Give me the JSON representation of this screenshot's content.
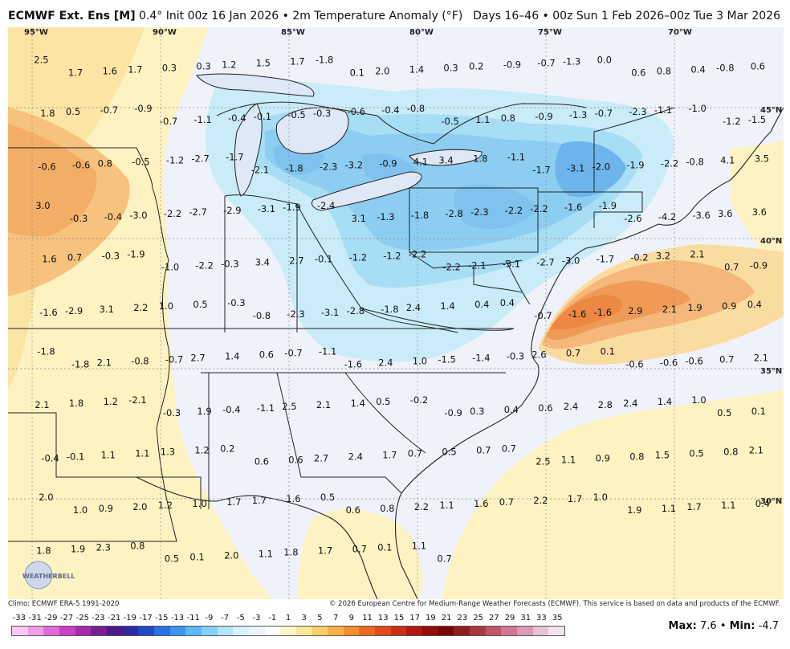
{
  "header": {
    "model": "ECMWF Ext. Ens [M]",
    "grid": "0.4°",
    "init": "Init 00z 16 Jan 2026",
    "field": "2m Temperature Anomaly (°F)",
    "valid": "Days 16–46 • 00z Sun 1 Feb 2026–00z Tue 3 Mar 2026"
  },
  "map": {
    "longitude_labels": [
      "95°W",
      "90°W",
      "85°W",
      "80°W",
      "75°W",
      "70°W"
    ],
    "latitude_labels": [
      "45°N",
      "40°N",
      "35°N",
      "30°N"
    ],
    "logo_text": "WEATHERBELL",
    "point_values": [
      "2.5",
      "1.7",
      "1.6",
      "1.7",
      "0.3",
      "0.3",
      "1.2",
      "1.5",
      "1.7",
      "-1.8",
      "0.1",
      "2.0",
      "1.4",
      "0.3",
      "0.2",
      "-0.9",
      "-0.7",
      "-1.3",
      "0.0",
      "0.6",
      "0.8",
      "0.4",
      "-0.8",
      "0.6",
      "1.8",
      "0.5",
      "-0.7",
      "-0.9",
      "-0.7",
      "-1.1",
      "-0.4",
      "-0.1",
      "-0.5",
      "-0.3",
      "-0.6",
      "-0.4",
      "-0.8",
      "-0.5",
      "1.1",
      "0.8",
      "-0.9",
      "-1.3",
      "-0.7",
      "-2.3",
      "-1.1",
      "-1.0",
      "-1.2",
      "-1.5",
      "-0.6",
      "-0.6",
      "0.8",
      "-0.5",
      "-1.2",
      "-2.7",
      "-1.7",
      "-2.1",
      "-1.8",
      "-2.3",
      "-3.2",
      "-0.9",
      "4.1",
      "3.4",
      "1.8",
      "-1.1",
      "-1.7",
      "-3.1",
      "-2.0",
      "-1.9",
      "-2.2",
      "-0.8",
      "4.1",
      "3.5",
      "3.0",
      "-0.3",
      "-0.4",
      "-3.0",
      "-2.2",
      "-2.7",
      "-2.9",
      "-3.1",
      "-1.9",
      "-2.4",
      "3.1",
      "-1.3",
      "-1.8",
      "-2.8",
      "-2.3",
      "-2.2",
      "-2.2",
      "-1.6",
      "-1.9",
      "-2.6",
      "-4.2",
      "-3.6",
      "3.6",
      "3.6",
      "1.6",
      "0.7",
      "-0.3",
      "-1.9",
      "-1.0",
      "-2.2",
      "-0.3",
      "3.4",
      "2.7",
      "-0.1",
      "-1.2",
      "-1.2",
      "-2.2",
      "-2.2",
      "-2.1",
      "-3.1",
      "-2.7",
      "-3.0",
      "-1.7",
      "-0.2",
      "3.2",
      "2.1",
      "0.7",
      "-0.9",
      "-1.6",
      "-2.9",
      "3.1",
      "2.2",
      "1.0",
      "0.5",
      "-0.3",
      "-0.8",
      "-2.3",
      "-3.1",
      "-2.8",
      "-1.8",
      "2.4",
      "1.4",
      "0.4",
      "0.4",
      "-0.7",
      "-1.6",
      "-1.6",
      "2.9",
      "2.1",
      "1.9",
      "0.9",
      "0.4",
      "-1.8",
      "-1.8",
      "2.1",
      "-0.8",
      "-0.7",
      "2.7",
      "1.4",
      "0.6",
      "-0.7",
      "-1.1",
      "-1.6",
      "2.4",
      "1.0",
      "-1.5",
      "-1.4",
      "-0.3",
      "2.6",
      "0.7",
      "0.1",
      "-0.6",
      "-0.6",
      "-0.6",
      "0.7",
      "2.1",
      "2.1",
      "1.8",
      "1.2",
      "-2.1",
      "-0.3",
      "1.9",
      "-0.4",
      "-1.1",
      "2.5",
      "2.1",
      "1.4",
      "0.5",
      "-0.2",
      "-0.9",
      "0.3",
      "0.4",
      "0.6",
      "2.4",
      "2.8",
      "2.4",
      "1.4",
      "1.0",
      "0.5",
      "0.1",
      "-0.4",
      "-0.1",
      "1.1",
      "1.1",
      "1.3",
      "1.2",
      "0.2",
      "0.6",
      "0.6",
      "2.7",
      "2.4",
      "1.7",
      "0.7",
      "0.5",
      "0.7",
      "0.7",
      "2.5",
      "1.1",
      "0.9",
      "0.8",
      "1.5",
      "0.5",
      "0.8",
      "2.1",
      "2.0",
      "1.0",
      "0.9",
      "2.0",
      "1.2",
      "1.0",
      "1.7",
      "1.7",
      "1.6",
      "0.5",
      "0.6",
      "0.8",
      "2.2",
      "1.1",
      "1.6",
      "0.7",
      "2.2",
      "1.7",
      "1.0",
      "1.9",
      "1.1",
      "1.7",
      "1.1",
      "0.4",
      "1.8",
      "1.9",
      "2.3",
      "0.8",
      "0.5",
      "0.1",
      "2.0",
      "1.1",
      "1.8",
      "1.7",
      "0.7",
      "0.1",
      "1.1",
      "0.7"
    ]
  },
  "credits": {
    "climo": "Climo: ECMWF ERA-5 1991-2020",
    "copyright": "© 2026 European Centre for Medium-Range Weather Forecasts (ECMWF). This service is based on data and products of the ECMWF."
  },
  "colorbar": {
    "labels": [
      "-33",
      "-31",
      "-29",
      "-27",
      "-25",
      "-23",
      "-21",
      "-19",
      "-17",
      "-15",
      "-13",
      "-11",
      "-9",
      "-7",
      "-5",
      "-3",
      "-1",
      "1",
      "3",
      "5",
      "7",
      "9",
      "11",
      "13",
      "15",
      "17",
      "19",
      "21",
      "23",
      "25",
      "27",
      "29",
      "31",
      "33",
      "35"
    ],
    "colors": [
      "#f7c8f2",
      "#ee9de6",
      "#e06bd8",
      "#c93fc6",
      "#a62aa8",
      "#7b1d92",
      "#4a1a8c",
      "#2b2c9e",
      "#2249c4",
      "#2c6fe0",
      "#3f95ee",
      "#5fb7f4",
      "#87d0f7",
      "#b3e4fb",
      "#d8f1fd",
      "#eef3fb",
      "#ffffff",
      "#fdf6c8",
      "#fbe79a",
      "#f9d06a",
      "#f6b148",
      "#f28e2e",
      "#ea6a22",
      "#df4b1c",
      "#cc2f17",
      "#b31812",
      "#930c0c",
      "#7a0707",
      "#8f1f1f",
      "#a8393f",
      "#c05568",
      "#cf7794",
      "#d99bb8",
      "#e8c3d8",
      "#f4e3ee"
    ]
  },
  "stats": {
    "max_label": "Max:",
    "max": "7.6",
    "min_label": "Min:",
    "min": "-4.7"
  }
}
